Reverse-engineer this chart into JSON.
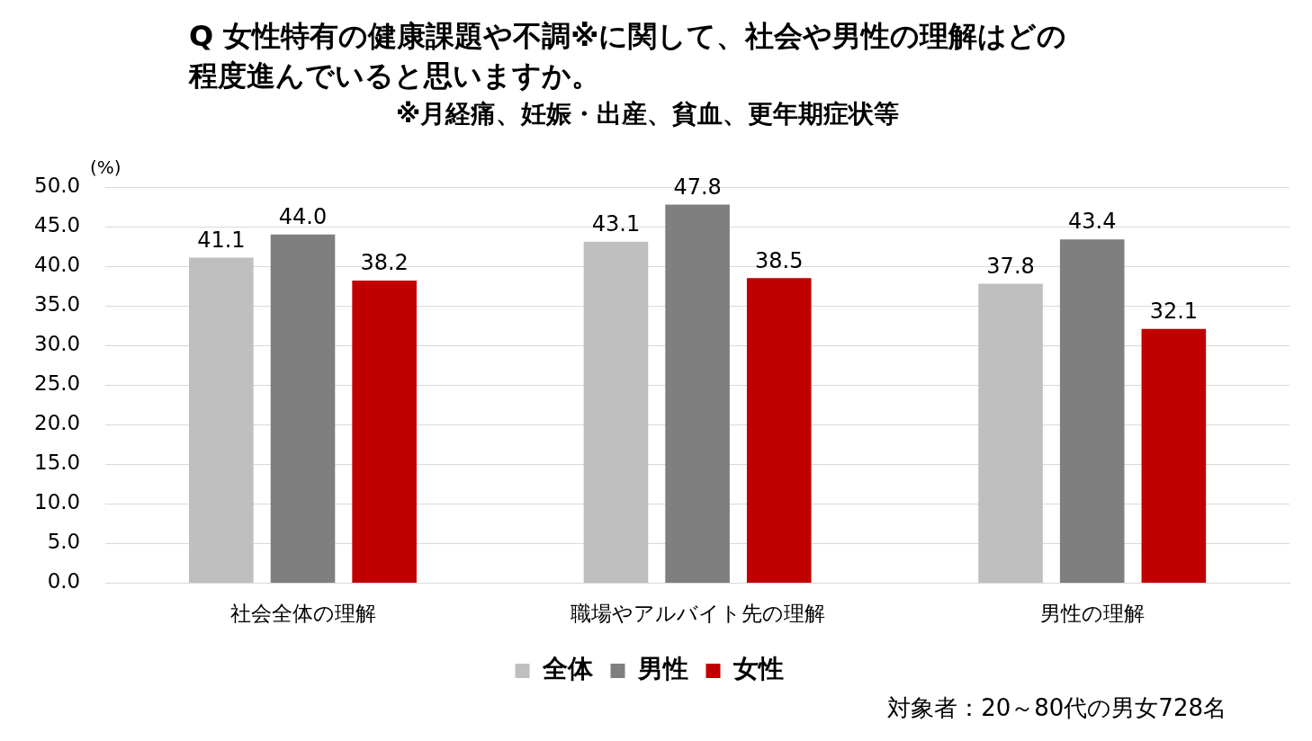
{
  "chart_data": {
    "type": "bar",
    "title": "Q 女性特有の健康課題や不調※に関して、社会や男性の理解はどの程度進んでいると思いますか。",
    "subtitle": "※月経痛、妊娠・出産、貧血、更年期症状等",
    "ylabel": "(%)",
    "annotations": [
      "対象者：20～80代の男女728名"
    ],
    "categories": [
      "社会全体の理解",
      "職場やアルバイト先の理解",
      "男性の理解"
    ],
    "series": [
      {
        "name": "全体",
        "color": "#bfbfbf",
        "values": [
          41.1,
          43.1,
          37.8
        ],
        "value_labels": [
          "41.1",
          "43.1",
          "37.8"
        ]
      },
      {
        "name": "男性",
        "color": "#7f7f7f",
        "values": [
          44.0,
          47.8,
          43.4
        ],
        "value_labels": [
          "44.0",
          "47.8",
          "43.4"
        ]
      },
      {
        "name": "女性",
        "color": "#c00000",
        "values": [
          38.2,
          38.5,
          32.1
        ],
        "value_labels": [
          "38.2",
          "38.5",
          "32.1"
        ]
      }
    ],
    "ylim": [
      0,
      50
    ],
    "yticks": [
      {
        "value": 0,
        "label": "0.0"
      },
      {
        "value": 5,
        "label": "5.0"
      },
      {
        "value": 10,
        "label": "10.0"
      },
      {
        "value": 15,
        "label": "15.0"
      },
      {
        "value": 20,
        "label": "20.0"
      },
      {
        "value": 25,
        "label": "25.0"
      },
      {
        "value": 30,
        "label": "30.0"
      },
      {
        "value": 35,
        "label": "35.0"
      },
      {
        "value": 40,
        "label": "40.0"
      },
      {
        "value": 45,
        "label": "45.0"
      },
      {
        "value": 50,
        "label": "50.0"
      }
    ],
    "grid": "y",
    "legend": "bottom"
  }
}
